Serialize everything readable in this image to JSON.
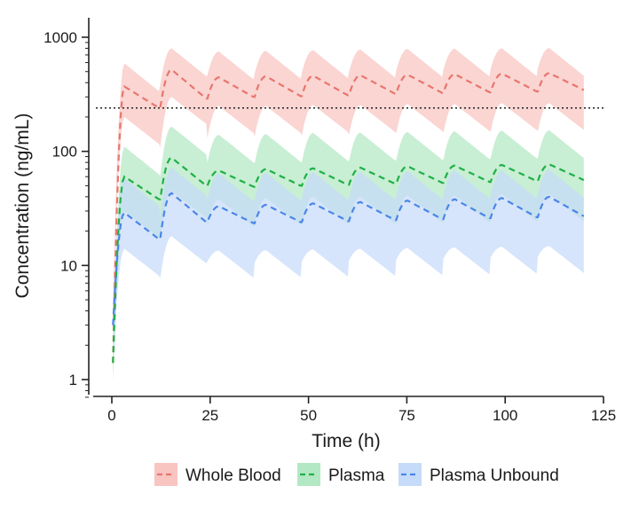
{
  "chart_data": {
    "type": "line",
    "xlabel": "Time (h)",
    "ylabel": "Concentration (ng/mL)",
    "y_scale": "log",
    "xlim": [
      0,
      125
    ],
    "ylim": [
      1,
      1000
    ],
    "x_ticks": [
      0,
      25,
      50,
      75,
      100,
      125
    ],
    "x_tick_labels": [
      "0",
      "25",
      "50",
      "75",
      "100",
      "125"
    ],
    "y_ticks": [
      1,
      10,
      100,
      1000
    ],
    "y_tick_labels": [
      "1",
      "10",
      "100",
      "1000"
    ],
    "reference_line": {
      "y": 240,
      "style": "dotted"
    },
    "legend_position": "bottom",
    "grid": false,
    "dosing_interval_h": 12,
    "series": [
      {
        "name": "Whole Blood",
        "color": "#e8766d",
        "band_color": "#f8c5c1",
        "dose_points": [
          {
            "trough": 0,
            "peak": 370,
            "lower": 200,
            "upper": 590,
            "pre": 240
          },
          {
            "trough": 240,
            "peak": 520,
            "lower": 300,
            "upper": 800,
            "pre": 290
          },
          {
            "trough": 290,
            "peak": 445,
            "lower": 250,
            "upper": 750,
            "pre": 300
          },
          {
            "trough": 300,
            "peak": 455,
            "lower": 250,
            "upper": 760,
            "pre": 305
          },
          {
            "trough": 305,
            "peak": 460,
            "lower": 255,
            "upper": 770,
            "pre": 310
          },
          {
            "trough": 310,
            "peak": 465,
            "lower": 255,
            "upper": 780,
            "pre": 320
          },
          {
            "trough": 320,
            "peak": 470,
            "lower": 260,
            "upper": 790,
            "pre": 325
          },
          {
            "trough": 325,
            "peak": 475,
            "lower": 260,
            "upper": 795,
            "pre": 330
          },
          {
            "trough": 330,
            "peak": 480,
            "lower": 265,
            "upper": 800,
            "pre": 335
          },
          {
            "trough": 335,
            "peak": 485,
            "lower": 265,
            "upper": 805,
            "pre": 345
          },
          {
            "trough": 345,
            "peak": 490,
            "lower": 270,
            "upper": 810,
            "pre": 395
          }
        ]
      },
      {
        "name": "Plasma",
        "color": "#1fb046",
        "band_color": "#b3e8c4",
        "dose_points": [
          {
            "trough": 1.4,
            "peak": 60,
            "lower": 30,
            "upper": 110,
            "pre": 38
          },
          {
            "trough": 38,
            "peak": 88,
            "lower": 45,
            "upper": 165,
            "pre": 50
          },
          {
            "trough": 50,
            "peak": 68,
            "lower": 38,
            "upper": 140,
            "pre": 49
          },
          {
            "trough": 49,
            "peak": 70,
            "lower": 39,
            "upper": 142,
            "pre": 50
          },
          {
            "trough": 50,
            "peak": 71,
            "lower": 40,
            "upper": 145,
            "pre": 51
          },
          {
            "trough": 51,
            "peak": 72,
            "lower": 40,
            "upper": 146,
            "pre": 52
          },
          {
            "trough": 52,
            "peak": 74,
            "lower": 41,
            "upper": 148,
            "pre": 53
          },
          {
            "trough": 53,
            "peak": 75,
            "lower": 41,
            "upper": 150,
            "pre": 54
          },
          {
            "trough": 54,
            "peak": 76,
            "lower": 42,
            "upper": 152,
            "pre": 55
          },
          {
            "trough": 55,
            "peak": 77,
            "lower": 42,
            "upper": 153,
            "pre": 56
          },
          {
            "trough": 56,
            "peak": 78,
            "lower": 43,
            "upper": 154,
            "pre": 70
          }
        ]
      },
      {
        "name": "Plasma Unbound",
        "color": "#4a86e8",
        "band_color": "#c6dbfa",
        "dose_points": [
          {
            "trough": 3,
            "peak": 29,
            "lower": 14,
            "upper": 58,
            "pre": 17
          },
          {
            "trough": 17,
            "peak": 43,
            "lower": 18,
            "upper": 72,
            "pre": 24
          },
          {
            "trough": 24,
            "peak": 33,
            "lower": 13.5,
            "upper": 64,
            "pre": 23.5
          },
          {
            "trough": 23.5,
            "peak": 34,
            "lower": 13.6,
            "upper": 65,
            "pre": 24
          },
          {
            "trough": 24,
            "peak": 35,
            "lower": 13.8,
            "upper": 66,
            "pre": 24.5
          },
          {
            "trough": 24.5,
            "peak": 36,
            "lower": 14,
            "upper": 66,
            "pre": 25
          },
          {
            "trough": 25,
            "peak": 37,
            "lower": 14.2,
            "upper": 67,
            "pre": 25.5
          },
          {
            "trough": 25.5,
            "peak": 38,
            "lower": 14.4,
            "upper": 68,
            "pre": 26
          },
          {
            "trough": 26,
            "peak": 39,
            "lower": 14.6,
            "upper": 68,
            "pre": 26.5
          },
          {
            "trough": 26.5,
            "peak": 40,
            "lower": 14.8,
            "upper": 69,
            "pre": 27
          },
          {
            "trough": 27,
            "peak": 41,
            "lower": 15,
            "upper": 70,
            "pre": 32
          }
        ]
      }
    ]
  }
}
